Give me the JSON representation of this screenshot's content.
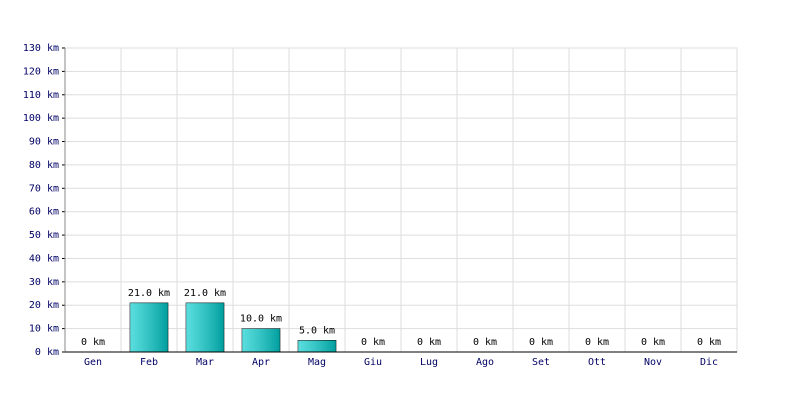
{
  "chart_data": {
    "type": "bar",
    "categories": [
      "Gen",
      "Feb",
      "Mar",
      "Apr",
      "Mag",
      "Giu",
      "Lug",
      "Ago",
      "Set",
      "Ott",
      "Nov",
      "Dic"
    ],
    "values": [
      0,
      21,
      21,
      10,
      5,
      0,
      0,
      0,
      0,
      0,
      0,
      0
    ],
    "value_labels": [
      "0 km",
      "21.0 km",
      "21.0 km",
      "10.0 km",
      "5.0 km",
      "0 km",
      "0 km",
      "0 km",
      "0 km",
      "0 km",
      "0 km",
      "0 km"
    ],
    "color": "#00cccc",
    "ylim": [
      0,
      130
    ],
    "yticks": [
      {
        "value": 0,
        "label": "0 km"
      },
      {
        "value": 10,
        "label": "10 km"
      },
      {
        "value": 20,
        "label": "20 km"
      },
      {
        "value": 30,
        "label": "30 km"
      },
      {
        "value": 40,
        "label": "40 km"
      },
      {
        "value": 50,
        "label": "50 km"
      },
      {
        "value": 60,
        "label": "60 km"
      },
      {
        "value": 70,
        "label": "70 km"
      },
      {
        "value": 80,
        "label": "80 km"
      },
      {
        "value": 90,
        "label": "90 km"
      },
      {
        "value": 100,
        "label": "100 km"
      },
      {
        "value": 110,
        "label": "110 km"
      },
      {
        "value": 120,
        "label": "120 km"
      },
      {
        "value": 130,
        "label": "130 km"
      }
    ],
    "grid": true
  }
}
